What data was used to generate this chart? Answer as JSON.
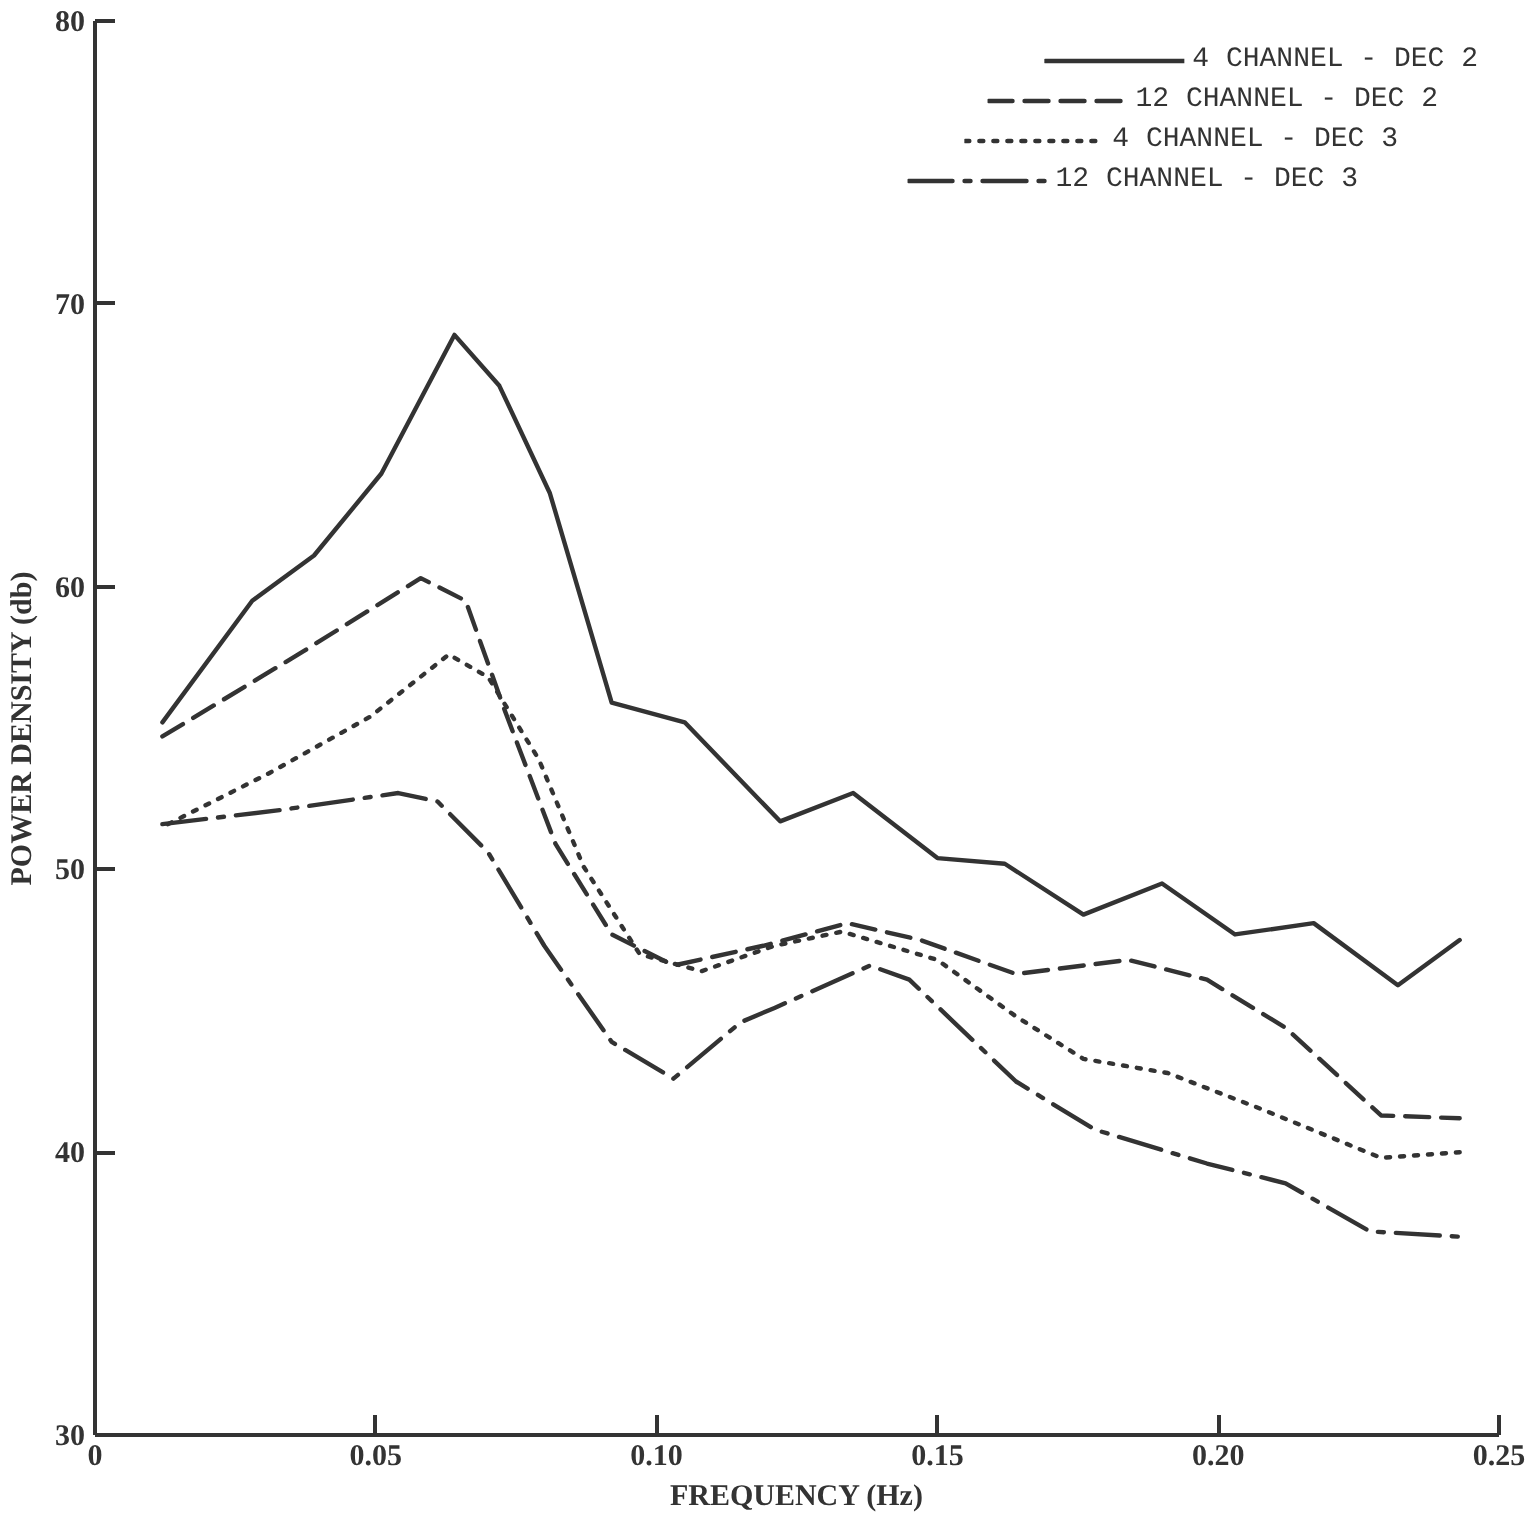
{
  "chart_data": {
    "type": "line",
    "xlabel": "FREQUENCY (Hz)",
    "ylabel": "POWER DENSITY (db)",
    "xlim": [
      0,
      0.25
    ],
    "ylim": [
      30,
      80
    ],
    "xticks": [
      {
        "value": 0,
        "label": "0"
      },
      0.05,
      {
        "value": 0.1,
        "label": "0.10"
      },
      0.15,
      {
        "value": 0.2,
        "label": "0.20"
      },
      0.25
    ],
    "yticks": [
      30,
      40,
      50,
      60,
      70,
      80
    ],
    "grid": false,
    "legend": "top right",
    "marker": "none",
    "series": [
      {
        "name": "4 CHANNEL - DEC 2",
        "color": "#333333",
        "line_style": "solid",
        "x": [
          0.012,
          0.028,
          0.039,
          0.051,
          0.064,
          0.072,
          0.081,
          0.092,
          0.105,
          0.122,
          0.135,
          0.15,
          0.162,
          0.176,
          0.19,
          0.203,
          0.217,
          0.232,
          0.243
        ],
        "values": [
          55.2,
          59.5,
          61.1,
          64.0,
          68.9,
          67.1,
          63.3,
          55.9,
          55.2,
          51.7,
          52.7,
          50.4,
          50.2,
          48.4,
          49.5,
          47.7,
          48.1,
          45.9,
          47.5
        ]
      },
      {
        "name": "12 CHANNEL - DEC 2",
        "color": "#333333",
        "line_style": "dashed",
        "x": [
          0.012,
          0.037,
          0.058,
          0.066,
          0.073,
          0.082,
          0.092,
          0.103,
          0.119,
          0.134,
          0.147,
          0.164,
          0.184,
          0.198,
          0.212,
          0.229,
          0.243
        ],
        "values": [
          54.7,
          57.7,
          60.3,
          59.5,
          55.6,
          50.9,
          47.7,
          46.6,
          47.3,
          48.1,
          47.5,
          46.3,
          46.8,
          46.1,
          44.4,
          41.3,
          41.2
        ]
      },
      {
        "name": "4 CHANNEL - DEC 3",
        "color": "#333333",
        "line_style": "dotted",
        "x": [
          0.013,
          0.031,
          0.049,
          0.063,
          0.07,
          0.079,
          0.087,
          0.097,
          0.108,
          0.121,
          0.133,
          0.15,
          0.164,
          0.176,
          0.191,
          0.208,
          0.229,
          0.243
        ],
        "values": [
          51.6,
          53.4,
          55.4,
          57.6,
          56.8,
          53.9,
          50.1,
          47.0,
          46.4,
          47.3,
          47.8,
          46.8,
          44.8,
          43.3,
          42.8,
          41.5,
          39.8,
          40.0
        ]
      },
      {
        "name": "12 CHANNEL - DEC 3",
        "color": "#333333",
        "line_style": "dashdot",
        "x": [
          0.012,
          0.033,
          0.054,
          0.061,
          0.07,
          0.08,
          0.092,
          0.103,
          0.115,
          0.121,
          0.138,
          0.145,
          0.164,
          0.178,
          0.198,
          0.212,
          0.227,
          0.244
        ],
        "values": [
          51.6,
          52.1,
          52.7,
          52.4,
          50.6,
          47.3,
          43.9,
          42.6,
          44.6,
          45.1,
          46.6,
          46.1,
          42.5,
          40.8,
          39.6,
          38.9,
          37.2,
          37.0
        ]
      }
    ]
  }
}
